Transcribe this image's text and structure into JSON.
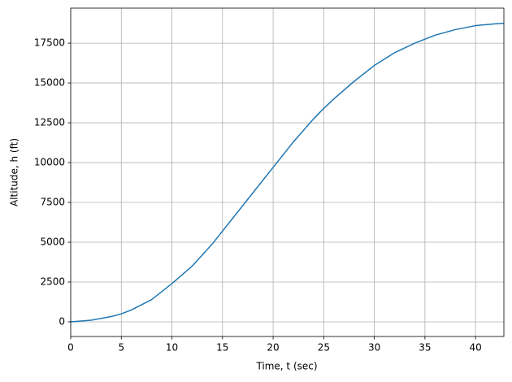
{
  "chart_data": {
    "type": "line",
    "xlabel": "Time, t (sec)",
    "ylabel": "Altitude, h (ft)",
    "x": [
      0,
      2,
      4,
      5,
      6,
      8,
      10,
      12,
      14,
      15,
      16,
      18,
      20,
      22,
      24,
      25,
      26,
      28,
      30,
      32,
      34,
      35,
      36,
      38,
      40,
      42,
      42.8
    ],
    "series": [
      {
        "name": "Altitude",
        "color": "#1f77b4",
        "values": [
          0,
          100,
          330,
          500,
          750,
          1400,
          2400,
          3500,
          4900,
          5700,
          6500,
          8100,
          9700,
          11300,
          12750,
          13400,
          14000,
          15100,
          16100,
          16900,
          17500,
          17750,
          18000,
          18350,
          18600,
          18720,
          18750
        ]
      }
    ],
    "xlim": [
      0,
      42.8
    ],
    "ylim": [
      -920,
      19700
    ],
    "xticks": [
      0,
      5,
      10,
      15,
      20,
      25,
      30,
      35,
      40
    ],
    "yticks": [
      0,
      2500,
      5000,
      7500,
      10000,
      12500,
      15000,
      17500
    ],
    "grid": true
  }
}
